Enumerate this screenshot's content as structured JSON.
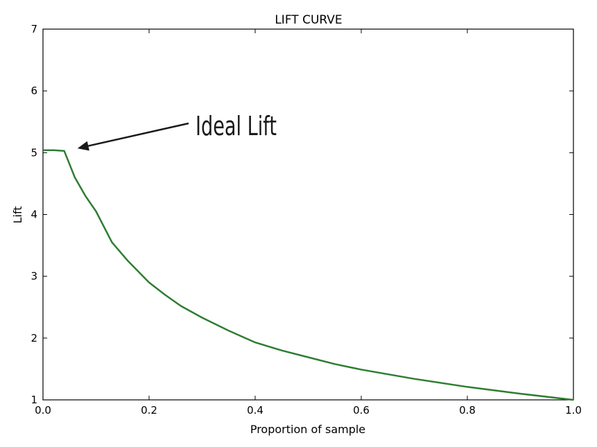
{
  "chart_data": {
    "type": "line",
    "title": "LIFT CURVE",
    "xlabel": "Proportion of sample",
    "ylabel": "Lift",
    "xlim": [
      0.0,
      1.0
    ],
    "ylim": [
      1,
      7
    ],
    "x_ticks": [
      "0.0",
      "0.2",
      "0.4",
      "0.6",
      "0.8",
      "1.0"
    ],
    "y_ticks": [
      "1",
      "2",
      "3",
      "4",
      "5",
      "6",
      "7"
    ],
    "grid": false,
    "series": [
      {
        "color": "#2e7d32",
        "x": [
          0.0,
          0.02,
          0.04,
          0.06,
          0.08,
          0.1,
          0.13,
          0.16,
          0.2,
          0.23,
          0.26,
          0.3,
          0.35,
          0.4,
          0.45,
          0.5,
          0.55,
          0.6,
          0.7,
          0.8,
          0.9,
          1.0
        ],
        "y": [
          5.04,
          5.04,
          5.03,
          4.6,
          4.3,
          4.05,
          3.55,
          3.25,
          2.9,
          2.7,
          2.52,
          2.33,
          2.12,
          1.93,
          1.8,
          1.69,
          1.58,
          1.49,
          1.34,
          1.21,
          1.1,
          1.0
        ]
      }
    ],
    "annotations": [
      {
        "text": "Ideal Lift",
        "target_x": 0.065,
        "target_y": 5.07
      }
    ]
  }
}
